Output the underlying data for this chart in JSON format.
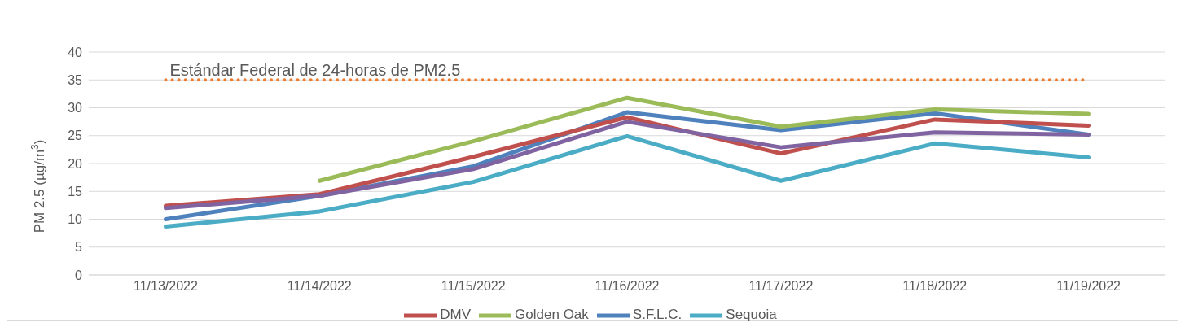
{
  "chart_data": {
    "type": "line",
    "ylabel": "PM 2.5 (µg/m$^{3}$)",
    "categories": [
      "11/13/2022",
      "11/14/2022",
      "11/15/2022",
      "11/16/2022",
      "11/17/2022",
      "11/18/2022",
      "11/19/2022"
    ],
    "series": [
      {
        "name": "S.F.L.C.",
        "color": "#4f81bd",
        "values": [
          10,
          14.2,
          19.5,
          29.2,
          26,
          29,
          25.2
        ]
      },
      {
        "name": "DMV",
        "color": "#c0504d",
        "values": [
          12.4,
          14.5,
          21.2,
          28.3,
          21.8,
          27.9,
          26.8
        ]
      },
      {
        "color": "#8064a2",
        "values": [
          12,
          14.2,
          19,
          27.5,
          22.9,
          25.6,
          25.2
        ]
      },
      {
        "name": "Sequoia",
        "color": "#4bacc6",
        "values": [
          8.7,
          11.4,
          16.7,
          24.9,
          16.9,
          23.6,
          21.1
        ]
      },
      {
        "name": "Golden Oak",
        "color": "#9bbb59",
        "values": [
          null,
          16.9,
          24,
          31.8,
          26.6,
          29.7,
          28.9
        ]
      }
    ],
    "ylim": [
      0,
      40
    ],
    "yticks": [
      0,
      5,
      10,
      15,
      20,
      25,
      30,
      35,
      40
    ],
    "ref_lines": [
      {
        "axis": "y",
        "value": 35,
        "label": "Estándar Federal de 24-horas de PM2.5",
        "color": "#ed7d31",
        "line_style": "dotted"
      }
    ],
    "grid": "y",
    "legend": "bottom",
    "marker": "none",
    "line_style": "solid"
  }
}
